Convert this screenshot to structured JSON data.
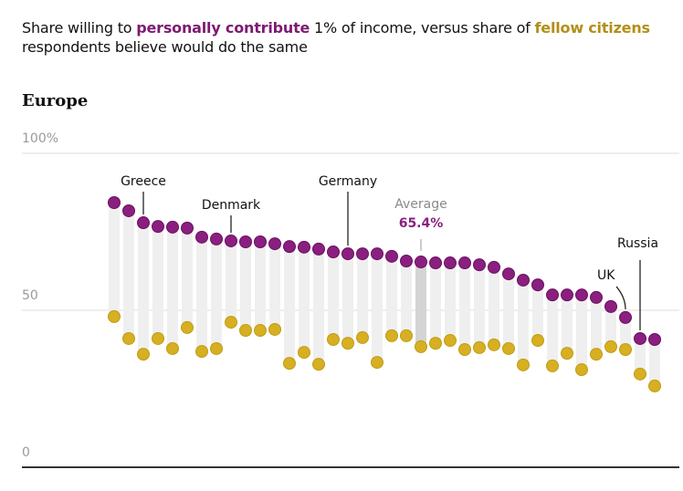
{
  "title": {
    "part1": "Share willing to ",
    "highlight1": "personally contribute",
    "part2": " 1% of income, versus share of ",
    "highlight2": "fellow citizens",
    "line2": "respondents believe would do the same"
  },
  "chart_data": {
    "type": "dot-range",
    "subtitle": "Europe",
    "ylim": [
      0,
      100
    ],
    "yticks": [
      {
        "value": 100,
        "label": "100%"
      },
      {
        "value": 50,
        "label": "50"
      },
      {
        "value": 0,
        "label": "0"
      }
    ],
    "grid": true,
    "colors": {
      "personal": "#8a1f80",
      "personal_stroke": "#6a1060",
      "fellow": "#d6af22",
      "fellow_stroke": "#c29c15",
      "bar": "#efefef",
      "avg_bar": "#d4d4d4"
    },
    "series": [
      {
        "name": "personally contribute",
        "values": [
          84.3,
          81.7,
          77.9,
          76.7,
          76.5,
          76.2,
          73.3,
          72.7,
          72.1,
          71.8,
          71.8,
          71.2,
          70.3,
          70.1,
          69.5,
          68.6,
          68.0,
          68.0,
          68.0,
          67.2,
          65.7,
          65.4,
          65.1,
          65.1,
          65.1,
          64.5,
          63.7,
          61.6,
          59.6,
          58.1,
          54.9,
          54.9,
          54.9,
          54.1,
          51.2,
          47.7,
          41.0,
          40.7
        ]
      },
      {
        "name": "fellow citizens",
        "values": [
          48.0,
          41.0,
          36.0,
          41.0,
          37.8,
          44.5,
          36.9,
          37.8,
          46.2,
          43.6,
          43.6,
          43.9,
          33.1,
          36.6,
          32.8,
          40.7,
          39.5,
          41.3,
          33.4,
          41.9,
          41.9,
          38.4,
          39.5,
          40.4,
          37.5,
          38.1,
          39.0,
          37.8,
          32.6,
          40.4,
          32.3,
          36.3,
          31.1,
          36.0,
          38.4,
          37.5,
          29.7,
          25.9
        ]
      }
    ],
    "average_index": 21,
    "annotations": [
      {
        "index": 2,
        "label": "Greece"
      },
      {
        "index": 8,
        "label": "Denmark"
      },
      {
        "index": 16,
        "label": "Germany"
      },
      {
        "index": 21,
        "label": "Average",
        "value_label": "65.4%"
      },
      {
        "index": 35,
        "label": "UK"
      },
      {
        "index": 36,
        "label": "Russia"
      }
    ]
  }
}
